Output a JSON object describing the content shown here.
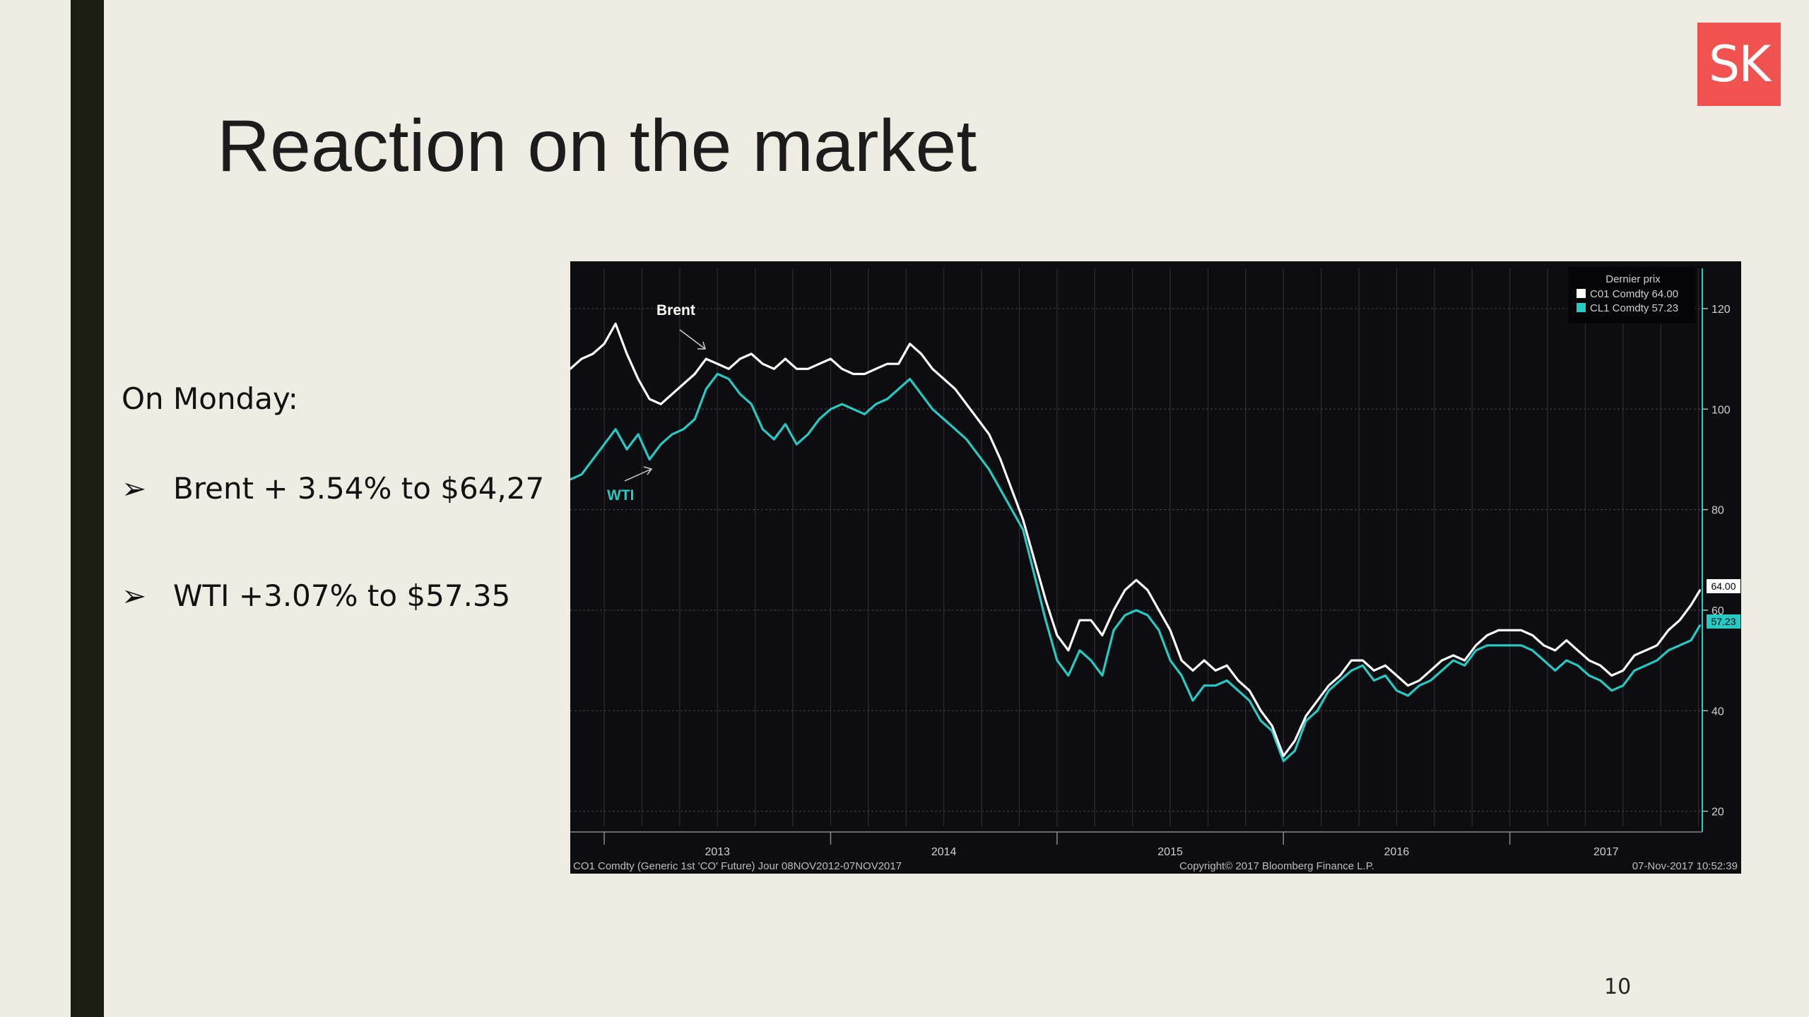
{
  "slide": {
    "title": "Reaction on the market",
    "logo_text": "SK",
    "intro": "On Monday:",
    "bullet_glyph": "➢",
    "bullets": [
      "Brent + 3.54% to $64,27",
      "WTI +3.07% to $57.35"
    ],
    "page_number": "10"
  },
  "colors": {
    "background": "#efece4",
    "side_bar": "#1c1d12",
    "logo": "#f0534f",
    "chart_background": "#0d0d10",
    "brent": "#ffffff",
    "wti": "#27c9c4"
  },
  "chart_data": {
    "type": "line",
    "x_tick_labels": [
      "2013",
      "2014",
      "2015",
      "2016",
      "2017"
    ],
    "x_range": [
      2012.85,
      2017.85
    ],
    "y_ticks": [
      20,
      40,
      60,
      80,
      100,
      120
    ],
    "ylim": [
      17,
      128
    ],
    "grid": true,
    "legend": {
      "position": "top-right",
      "title": "Dernier prix",
      "entries": [
        "C01 Comdty 64.00",
        "CL1 Comdty 57.23"
      ]
    },
    "annotations": [
      "Brent",
      "WTI"
    ],
    "last_price_tags": [
      "64.00",
      "57.23"
    ],
    "footer": {
      "left": "CO1 Comdty (Generic 1st 'CO' Future)  Jour 08NOV2012-07NOV2017",
      "center": "Copyright© 2017 Bloomberg Finance L.P.",
      "right": "07-Nov-2017 10:52:39"
    },
    "series": [
      {
        "name": "C01 Comdty",
        "color": "#ffffff",
        "x": [
          2012.85,
          2012.9,
          2012.95,
          2013.0,
          2013.05,
          2013.1,
          2013.15,
          2013.2,
          2013.25,
          2013.3,
          2013.35,
          2013.4,
          2013.45,
          2013.5,
          2013.55,
          2013.6,
          2013.65,
          2013.7,
          2013.75,
          2013.8,
          2013.85,
          2013.9,
          2013.95,
          2014.0,
          2014.05,
          2014.1,
          2014.15,
          2014.2,
          2014.25,
          2014.3,
          2014.35,
          2014.4,
          2014.45,
          2014.5,
          2014.55,
          2014.6,
          2014.65,
          2014.7,
          2014.75,
          2014.8,
          2014.85,
          2014.9,
          2014.95,
          2015.0,
          2015.05,
          2015.1,
          2015.15,
          2015.2,
          2015.25,
          2015.3,
          2015.35,
          2015.4,
          2015.45,
          2015.5,
          2015.55,
          2015.6,
          2015.65,
          2015.7,
          2015.75,
          2015.8,
          2015.85,
          2015.9,
          2015.95,
          2016.0,
          2016.05,
          2016.1,
          2016.15,
          2016.2,
          2016.25,
          2016.3,
          2016.35,
          2016.4,
          2016.45,
          2016.5,
          2016.55,
          2016.6,
          2016.65,
          2016.7,
          2016.75,
          2016.8,
          2016.85,
          2016.9,
          2016.95,
          2017.0,
          2017.05,
          2017.1,
          2017.15,
          2017.2,
          2017.25,
          2017.3,
          2017.35,
          2017.4,
          2017.45,
          2017.5,
          2017.55,
          2017.6,
          2017.65,
          2017.7,
          2017.75,
          2017.8,
          2017.84
        ],
        "values": [
          108,
          110,
          111,
          113,
          117,
          111,
          106,
          102,
          101,
          103,
          105,
          107,
          110,
          109,
          108,
          110,
          111,
          109,
          108,
          110,
          108,
          108,
          109,
          110,
          108,
          107,
          107,
          108,
          109,
          109,
          113,
          111,
          108,
          106,
          104,
          101,
          98,
          95,
          90,
          84,
          78,
          70,
          62,
          55,
          52,
          58,
          58,
          55,
          60,
          64,
          66,
          64,
          60,
          56,
          50,
          48,
          50,
          48,
          49,
          46,
          44,
          40,
          37,
          31,
          34,
          39,
          42,
          45,
          47,
          50,
          50,
          48,
          49,
          47,
          45,
          46,
          48,
          50,
          51,
          50,
          53,
          55,
          56,
          56,
          56,
          55,
          53,
          52,
          54,
          52,
          50,
          49,
          47,
          48,
          51,
          52,
          53,
          56,
          58,
          61,
          64
        ]
      },
      {
        "name": "CL1 Comdty",
        "color": "#27c9c4",
        "x": [
          2012.85,
          2012.9,
          2012.95,
          2013.0,
          2013.05,
          2013.1,
          2013.15,
          2013.2,
          2013.25,
          2013.3,
          2013.35,
          2013.4,
          2013.45,
          2013.5,
          2013.55,
          2013.6,
          2013.65,
          2013.7,
          2013.75,
          2013.8,
          2013.85,
          2013.9,
          2013.95,
          2014.0,
          2014.05,
          2014.1,
          2014.15,
          2014.2,
          2014.25,
          2014.3,
          2014.35,
          2014.4,
          2014.45,
          2014.5,
          2014.55,
          2014.6,
          2014.65,
          2014.7,
          2014.75,
          2014.8,
          2014.85,
          2014.9,
          2014.95,
          2015.0,
          2015.05,
          2015.1,
          2015.15,
          2015.2,
          2015.25,
          2015.3,
          2015.35,
          2015.4,
          2015.45,
          2015.5,
          2015.55,
          2015.6,
          2015.65,
          2015.7,
          2015.75,
          2015.8,
          2015.85,
          2015.9,
          2015.95,
          2016.0,
          2016.05,
          2016.1,
          2016.15,
          2016.2,
          2016.25,
          2016.3,
          2016.35,
          2016.4,
          2016.45,
          2016.5,
          2016.55,
          2016.6,
          2016.65,
          2016.7,
          2016.75,
          2016.8,
          2016.85,
          2016.9,
          2016.95,
          2017.0,
          2017.05,
          2017.1,
          2017.15,
          2017.2,
          2017.25,
          2017.3,
          2017.35,
          2017.4,
          2017.45,
          2017.5,
          2017.55,
          2017.6,
          2017.65,
          2017.7,
          2017.75,
          2017.8,
          2017.84
        ],
        "values": [
          86,
          87,
          90,
          93,
          96,
          92,
          95,
          90,
          93,
          95,
          96,
          98,
          104,
          107,
          106,
          103,
          101,
          96,
          94,
          97,
          93,
          95,
          98,
          100,
          101,
          100,
          99,
          101,
          102,
          104,
          106,
          103,
          100,
          98,
          96,
          94,
          91,
          88,
          84,
          80,
          76,
          67,
          58,
          50,
          47,
          52,
          50,
          47,
          56,
          59,
          60,
          59,
          56,
          50,
          47,
          42,
          45,
          45,
          46,
          44,
          42,
          38,
          36,
          30,
          32,
          38,
          40,
          44,
          46,
          48,
          49,
          46,
          47,
          44,
          43,
          45,
          46,
          48,
          50,
          49,
          52,
          53,
          53,
          53,
          53,
          52,
          50,
          48,
          50,
          49,
          47,
          46,
          44,
          45,
          48,
          49,
          50,
          52,
          53,
          54,
          57
        ]
      }
    ]
  }
}
